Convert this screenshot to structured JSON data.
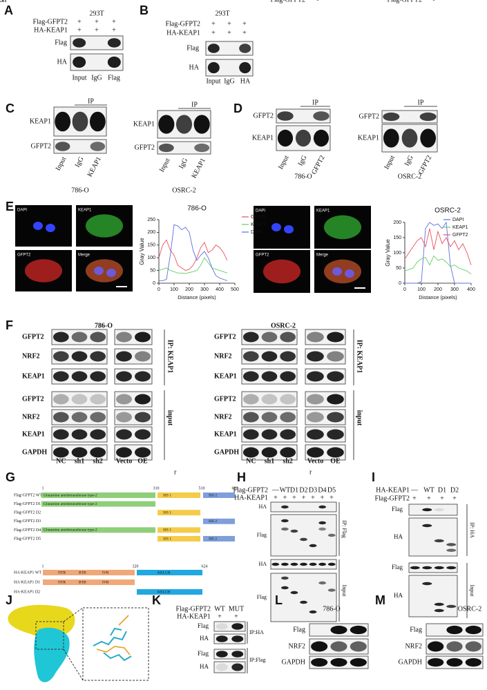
{
  "figure": {
    "A": {
      "letter": "A",
      "cell": "293T",
      "conditions": [
        {
          "name": "Flag-GFPT2",
          "marks": [
            "+",
            "+",
            "+"
          ]
        },
        {
          "name": "HA-KEAP1",
          "marks": [
            "+",
            "+",
            "+"
          ]
        }
      ],
      "blots": [
        "Flag",
        "HA"
      ],
      "lanes": [
        "Input",
        "IgG",
        "Flag"
      ]
    },
    "B": {
      "letter": "B",
      "cell": "293T",
      "conditions": [
        {
          "name": "Flag-GFPT2",
          "marks": [
            "+",
            "+",
            "+"
          ]
        },
        {
          "name": "HA-KEAP1",
          "marks": [
            "+",
            "+",
            "+"
          ]
        }
      ],
      "blots": [
        "Flag",
        "HA"
      ],
      "lanes": [
        "Input",
        "IgG",
        "HA"
      ]
    },
    "C": {
      "letter": "C",
      "groups": [
        {
          "ip": "IP",
          "blots": [
            "KEAP1",
            "GFPT2"
          ],
          "lanes": [
            "Input",
            "IgG",
            "KEAP1"
          ],
          "cell": "786-O"
        },
        {
          "ip": "IP",
          "blots": [
            "KEAP1",
            "GFPT2"
          ],
          "lanes": [
            "Input",
            "IgG",
            "KEAP1"
          ],
          "cell": "OSRC-2"
        }
      ]
    },
    "D": {
      "letter": "D",
      "groups": [
        {
          "ip": "IP",
          "blots": [
            "GFPT2",
            "KEAP1"
          ],
          "lanes": [
            "Input",
            "IgG",
            "GFPT2"
          ],
          "cell": "786-O"
        },
        {
          "ip": "IP",
          "blots": [
            "GFPT2",
            "KEAP1"
          ],
          "lanes": [
            "Input",
            "IgG",
            "GFPT2"
          ],
          "cell": "OSRC-2"
        }
      ]
    },
    "E": {
      "letter": "E",
      "groups": [
        {
          "images": [
            "DAPI",
            "KEAP1",
            "GFPT2",
            "Merge"
          ]
        },
        {
          "images": [
            "DAPI",
            "KEAP1",
            "GFPT2",
            "Merge"
          ]
        }
      ]
    },
    "F": {
      "letter": "F",
      "groups": [
        {
          "cell": "786-O",
          "blots": [
            "GFPT2",
            "NRF2",
            "KEAP1",
            "GFPT2",
            "NRF2",
            "KEAP1",
            "GAPDH"
          ],
          "sections": [
            "IP: KEAP1",
            "input"
          ],
          "lanes": [
            "NC",
            "sh1",
            "sh2",
            "Vecto",
            "OE"
          ]
        },
        {
          "cell": "OSRC-2",
          "blots": [
            "GFPT2",
            "NRF2",
            "KEAP1",
            "GFPT2",
            "NRF2",
            "KEAP1",
            "GAPDH"
          ],
          "sections": [
            "IP: KEAP1",
            "input"
          ],
          "lanes": [
            "NC",
            "sh1",
            "sh2",
            "Vecto",
            "OE"
          ]
        }
      ]
    },
    "G": {
      "letter": "G",
      "stray": "r",
      "gfpt2": {
        "positions": [
          1,
          310,
          510,
          682
        ],
        "rows": [
          "Flag-GFPT2 WT",
          "Flag-GFPT2 D1",
          "Flag-GFPT2 D2",
          "Flag-GFPT2 D3",
          "Flag-GFPT2 D4",
          "Flag-GFPT2 D5"
        ],
        "domains": [
          "Glutamine amidotransferase type-2",
          "SIS 1",
          "SIS 2"
        ]
      },
      "keap1": {
        "positions": [
          1,
          320,
          624
        ],
        "rows": [
          "HA-KEAP1 WT",
          "HA-KEAP1 D1",
          "HA-KEAP1 D2"
        ],
        "domains": [
          "NTR",
          "BTB",
          "IVR",
          "KELCH"
        ]
      }
    },
    "H": {
      "letter": "H",
      "stray": "r",
      "conditions": [
        {
          "name": "Flag-GFPT2",
          "marks": [
            "—",
            "WT",
            "D1",
            "D2",
            "D3",
            "D4",
            "D5"
          ]
        },
        {
          "name": "HA-KEAP1",
          "marks": [
            "+",
            "+",
            "+",
            "+",
            "+",
            "+",
            "+"
          ]
        }
      ],
      "blots": [
        "HA",
        "Flag",
        "HA",
        "Flag"
      ],
      "sections": [
        "IP: Flag",
        "Input"
      ]
    },
    "I": {
      "letter": "I",
      "conditions": [
        {
          "name": "HA-KEAP1",
          "marks": [
            "—",
            "WT",
            "D1",
            "D2"
          ]
        },
        {
          "name": "Flag-GFPT2",
          "marks": [
            "+",
            "+",
            "+",
            "+"
          ]
        }
      ],
      "blots": [
        "Flag",
        "HA",
        "Flag",
        "HA"
      ],
      "sections": [
        "IP: HA",
        "Input"
      ]
    },
    "J": {
      "letter": "J"
    },
    "K": {
      "letter": "K",
      "conditions": [
        {
          "name": "Flag-GFPT2",
          "marks": [
            "WT",
            "MUT"
          ]
        },
        {
          "name": "HA-KEAP1",
          "marks": [
            "+",
            "+"
          ]
        }
      ],
      "blots": [
        "Flag",
        "HA",
        "Flag",
        "HA"
      ],
      "sections": [
        "IP:HA",
        "IP:Flag"
      ]
    },
    "L": {
      "letter": "L",
      "cell": "786-O",
      "conditions": [
        {
          "name": "Flag-GFPT2",
          "marks": [
            "-",
            "WT",
            "MUT"
          ]
        }
      ],
      "blots": [
        "Flag",
        "NRF2",
        "GAPDH"
      ]
    },
    "M": {
      "letter": "M",
      "cell": "OSRC-2",
      "conditions": [
        {
          "name": "Flag-GFPT2",
          "marks": [
            "-",
            "WT",
            "MUT"
          ]
        }
      ],
      "blots": [
        "Flag",
        "NRF2",
        "GAPDH"
      ]
    }
  },
  "chart_data": [
    {
      "type": "line",
      "title": "786-O",
      "x_label": "Distance (pixels)",
      "y_label": "Gray Value",
      "legend": "outside right",
      "x": [
        0,
        25,
        50,
        75,
        100,
        125,
        150,
        175,
        200,
        225,
        250,
        275,
        300,
        325,
        350,
        375,
        400,
        425,
        450
      ],
      "series": [
        {
          "name": "GFPT2",
          "color": "#e8505b",
          "values": [
            100,
            150,
            170,
            130,
            110,
            70,
            60,
            50,
            55,
            70,
            100,
            140,
            160,
            120,
            130,
            150,
            140,
            120,
            90
          ]
        },
        {
          "name": "KEAP1",
          "color": "#66cc66",
          "values": [
            50,
            55,
            60,
            50,
            45,
            40,
            40,
            38,
            42,
            45,
            50,
            70,
            100,
            80,
            60,
            55,
            50,
            45,
            40
          ]
        },
        {
          "name": "DAPI",
          "color": "#5b6fe0",
          "values": [
            10,
            10,
            15,
            110,
            230,
            225,
            210,
            220,
            200,
            130,
            90,
            110,
            125,
            100,
            60,
            30,
            20,
            15,
            10
          ]
        }
      ],
      "xlim": [
        0,
        500
      ],
      "xticks": [
        0,
        100,
        200,
        300,
        400,
        500
      ],
      "ylim": [
        0,
        250
      ],
      "yticks": [
        0,
        50,
        100,
        150,
        200,
        250
      ]
    },
    {
      "type": "line",
      "title": "OSRC-2",
      "x_label": "Distance (pixels)",
      "y_label": "Gray Value",
      "legend": "upper right",
      "x": [
        0,
        25,
        50,
        75,
        100,
        125,
        150,
        175,
        200,
        225,
        250,
        275,
        300,
        325,
        350,
        375,
        400
      ],
      "series": [
        {
          "name": "DAPI",
          "color": "#5b6fe0",
          "values": [
            0,
            0,
            0,
            0,
            5,
            180,
            200,
            190,
            195,
            180,
            200,
            60,
            0,
            0,
            0,
            0,
            0
          ]
        },
        {
          "name": "KEAP1",
          "color": "#66cc66",
          "values": [
            40,
            45,
            50,
            70,
            80,
            85,
            60,
            90,
            75,
            80,
            70,
            55,
            60,
            50,
            45,
            40,
            30
          ]
        },
        {
          "name": "GFPT2",
          "color": "#e8505b",
          "values": [
            80,
            100,
            120,
            140,
            150,
            120,
            180,
            110,
            170,
            130,
            150,
            120,
            140,
            110,
            130,
            100,
            60
          ]
        }
      ],
      "xlim": [
        0,
        400
      ],
      "xticks": [
        0,
        100,
        200,
        300,
        400
      ],
      "ylim": [
        0,
        200
      ],
      "yticks": [
        0,
        50,
        100,
        150,
        200
      ]
    }
  ]
}
